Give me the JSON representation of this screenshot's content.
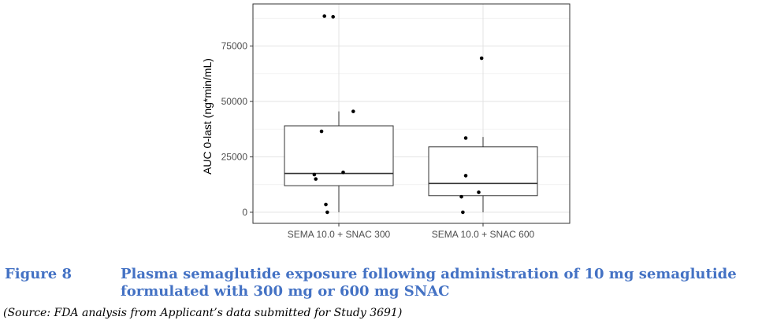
{
  "chart_data": {
    "type": "box",
    "ylabel": "AUC 0-last (ng*min/mL)",
    "xlabel": "",
    "ylim": [
      -5000,
      94000
    ],
    "yticks": [
      0,
      25000,
      50000,
      75000
    ],
    "ytick_labels": [
      "0",
      "25000",
      "50000",
      "75000"
    ],
    "grid": true,
    "categories": [
      "SEMA 10.0 + SNAC 300",
      "SEMA 10.0 + SNAC 600"
    ],
    "boxes": [
      {
        "q1": 12000,
        "median": 17500,
        "q3": 39000,
        "whisker_low": 0,
        "whisker_high": 45500
      },
      {
        "q1": 7500,
        "median": 13000,
        "q3": 29500,
        "whisker_low": 0,
        "whisker_high": 34000
      }
    ],
    "points": [
      [
        {
          "jitter": -0.1,
          "y": 88500
        },
        {
          "jitter": -0.04,
          "y": 88200
        },
        {
          "jitter": 0.1,
          "y": 45500
        },
        {
          "jitter": -0.12,
          "y": 36500
        },
        {
          "jitter": 0.03,
          "y": 18000
        },
        {
          "jitter": -0.17,
          "y": 17000
        },
        {
          "jitter": -0.16,
          "y": 15000
        },
        {
          "jitter": -0.09,
          "y": 3500
        },
        {
          "jitter": -0.08,
          "y": 0
        }
      ],
      [
        {
          "jitter": -0.01,
          "y": 69500
        },
        {
          "jitter": -0.12,
          "y": 33500
        },
        {
          "jitter": -0.12,
          "y": 16500
        },
        {
          "jitter": -0.03,
          "y": 9000
        },
        {
          "jitter": -0.15,
          "y": 7000
        },
        {
          "jitter": -0.14,
          "y": 0
        }
      ]
    ]
  },
  "caption": {
    "label": "Figure 8",
    "title": "Plasma semaglutide exposure following administration of 10 mg semaglutide formulated with 300 mg or 600 mg SNAC",
    "source": "(Source:  FDA analysis from Applicant’s data submitted for Study 3691)"
  }
}
